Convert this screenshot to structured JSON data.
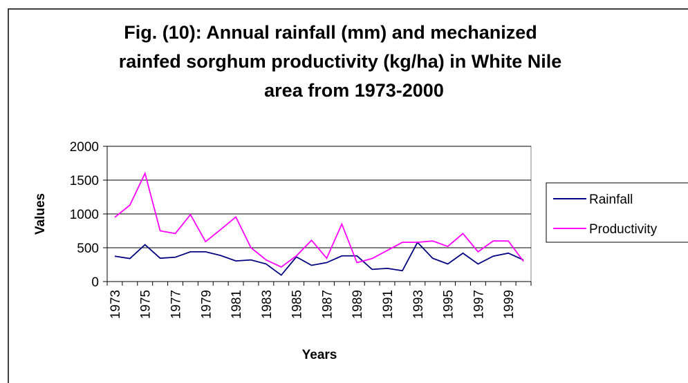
{
  "chart_data": {
    "type": "line",
    "title": [
      "Fig. (10): Annual rainfall (mm) and mechanized",
      "rainfed sorghum productivity (kg/ha) in White Nile",
      "area from 1973-2000"
    ],
    "x_label": "Years",
    "y_label": "Values",
    "categories": [
      "1973",
      null,
      "1975",
      null,
      "1977",
      null,
      "1979",
      null,
      "1981",
      null,
      "1983",
      null,
      "1985",
      null,
      "1987",
      null,
      "1989",
      null,
      "1991",
      null,
      "1993",
      null,
      "1995",
      null,
      "1997",
      null,
      "1999",
      null
    ],
    "series": [
      {
        "name": "Rainfall",
        "color": "#000080",
        "values": [
          375,
          340,
          545,
          345,
          360,
          440,
          440,
          385,
          305,
          320,
          260,
          95,
          365,
          240,
          280,
          380,
          380,
          180,
          195,
          160,
          580,
          345,
          260,
          420,
          260,
          375,
          420,
          320
        ]
      },
      {
        "name": "Productivity",
        "color": "#ff00ff",
        "values": [
          950,
          1130,
          1600,
          750,
          710,
          990,
          590,
          770,
          955,
          500,
          320,
          215,
          380,
          610,
          345,
          850,
          280,
          340,
          460,
          580,
          580,
          600,
          520,
          710,
          440,
          600,
          600,
          300
        ]
      }
    ],
    "ylim": [
      0,
      2000
    ],
    "yticks": [
      0,
      500,
      1000,
      1500,
      2000
    ],
    "grid": true,
    "legend": "right"
  }
}
